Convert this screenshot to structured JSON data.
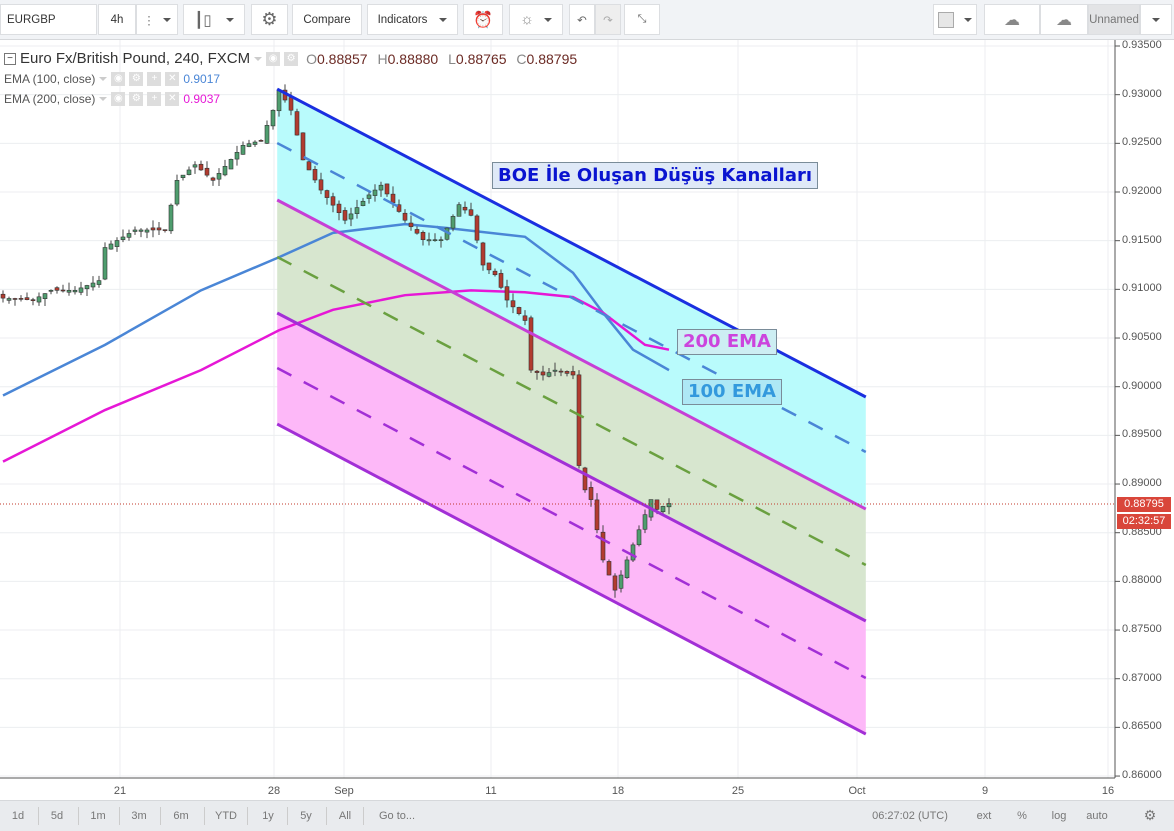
{
  "toolbar": {
    "symbol": "EURGBP",
    "interval": "4h",
    "compare_label": "Compare",
    "indicators_label": "Indicators",
    "layout_name": "Unnamed"
  },
  "legend": {
    "title": "Euro Fx/British Pound, 240, FXCM",
    "open_label": "O",
    "open": "0.88857",
    "high_label": "H",
    "high": "0.88880",
    "low_label": "L",
    "low": "0.88765",
    "close_label": "C",
    "close": "0.88795",
    "ema100_label": "EMA (100, close)",
    "ema100_value": "0.9017",
    "ema200_label": "EMA (200, close)",
    "ema200_value": "0.9037"
  },
  "annotations": {
    "title": "BOE İle Oluşan Düşüş Kanalları",
    "ema200": "200 EMA",
    "ema100": "100 EMA"
  },
  "price_axis": {
    "ticks": [
      "0.93500",
      "0.93000",
      "0.92500",
      "0.92000",
      "0.91500",
      "0.91000",
      "0.90500",
      "0.90000",
      "0.89500",
      "0.89000",
      "0.88500",
      "0.88000",
      "0.87500",
      "0.87000",
      "0.86500",
      "0.86000"
    ],
    "last_price": "0.88795",
    "countdown": "02:32:57"
  },
  "time_axis": {
    "ticks": [
      "21",
      "28",
      "Sep",
      "11",
      "18",
      "25",
      "Oct",
      "9",
      "16"
    ]
  },
  "bottom_bar": {
    "ranges": [
      "1d",
      "5d",
      "1m",
      "3m",
      "6m",
      "YTD",
      "1y",
      "5y",
      "All"
    ],
    "goto": "Go to...",
    "clock": "06:27:02 (UTC)",
    "ext": "ext",
    "percent": "%",
    "log": "log",
    "auto": "auto"
  },
  "colors": {
    "up": "#4f9d6e",
    "down": "#b23b2f",
    "ema100": "#4a86d6",
    "ema200": "#e617d6",
    "last_price": "#d9463a"
  },
  "chart_data": {
    "type": "candlestick",
    "ylim": [
      0.86,
      0.935
    ],
    "close_path": [
      [
        0,
        0.9091
      ],
      [
        5,
        0.9089
      ],
      [
        8,
        0.9099
      ],
      [
        12,
        0.9099
      ],
      [
        16,
        0.9109
      ],
      [
        17,
        0.9143
      ],
      [
        22,
        0.9161
      ],
      [
        27,
        0.9161
      ],
      [
        29,
        0.9212
      ],
      [
        32,
        0.9228
      ],
      [
        35,
        0.9212
      ],
      [
        40,
        0.9248
      ],
      [
        43,
        0.9253
      ],
      [
        45,
        0.9284
      ],
      [
        46,
        0.9305
      ],
      [
        48,
        0.9284
      ],
      [
        50,
        0.9233
      ],
      [
        53,
        0.9202
      ],
      [
        57,
        0.9171
      ],
      [
        61,
        0.9197
      ],
      [
        63,
        0.9207
      ],
      [
        67,
        0.9171
      ],
      [
        70,
        0.9151
      ],
      [
        73,
        0.9151
      ],
      [
        76,
        0.9187
      ],
      [
        78,
        0.9176
      ],
      [
        80,
        0.9125
      ],
      [
        82,
        0.9115
      ],
      [
        84,
        0.9089
      ],
      [
        87,
        0.9068
      ],
      [
        88,
        0.9017
      ],
      [
        90,
        0.9012
      ],
      [
        92,
        0.9017
      ],
      [
        95,
        0.9012
      ],
      [
        96,
        0.8919
      ],
      [
        97,
        0.8894
      ],
      [
        98,
        0.8884
      ],
      [
        100,
        0.8822
      ],
      [
        102,
        0.8791
      ],
      [
        104,
        0.8822
      ],
      [
        106,
        0.8853
      ],
      [
        108,
        0.8884
      ],
      [
        109,
        0.8874
      ],
      [
        111,
        0.888
      ]
    ],
    "ema100": [
      [
        0,
        0.8991
      ],
      [
        17,
        0.9043
      ],
      [
        33,
        0.9099
      ],
      [
        46,
        0.9133
      ],
      [
        55,
        0.9158
      ],
      [
        67,
        0.9167
      ],
      [
        74,
        0.9163
      ],
      [
        87,
        0.9154
      ],
      [
        95,
        0.9117
      ],
      [
        100,
        0.9076
      ],
      [
        105,
        0.9038
      ],
      [
        111,
        0.9017
      ]
    ],
    "ema200": [
      [
        0,
        0.8923
      ],
      [
        17,
        0.8976
      ],
      [
        33,
        0.9017
      ],
      [
        46,
        0.9058
      ],
      [
        55,
        0.9079
      ],
      [
        67,
        0.9094
      ],
      [
        78,
        0.9099
      ],
      [
        87,
        0.9097
      ],
      [
        95,
        0.9092
      ],
      [
        100,
        0.9076
      ],
      [
        107,
        0.9043
      ],
      [
        111,
        0.9038
      ]
    ],
    "channels": {
      "start_bar": 45.7,
      "end_bar": 143.8,
      "lines": [
        {
          "name": "upper-blue",
          "start": 0.93058,
          "end": 0.89894,
          "color": "#1a2fe0",
          "dashed": false
        },
        {
          "name": "mid-blue-dashed",
          "start": 0.92503,
          "end": 0.89329,
          "color": "#4a86d6",
          "dashed": true
        },
        {
          "name": "magenta",
          "start": 0.91918,
          "end": 0.88743,
          "color": "#c63fd6",
          "dashed": false
        },
        {
          "name": "mid-green-dashed",
          "start": 0.91332,
          "end": 0.88168,
          "color": "#6aa040",
          "dashed": true
        },
        {
          "name": "purple",
          "start": 0.90757,
          "end": 0.87593,
          "color": "#a22fd6",
          "dashed": false
        },
        {
          "name": "mid-purple-dashed",
          "start": 0.90192,
          "end": 0.87007,
          "color": "#a22fd6",
          "dashed": true
        },
        {
          "name": "lower-purple",
          "start": 0.89616,
          "end": 0.86431,
          "color": "#a22fd6",
          "dashed": false
        }
      ],
      "fills": [
        "#b9fbfc",
        "#d7e6cf",
        "#fdb8f8"
      ]
    }
  }
}
